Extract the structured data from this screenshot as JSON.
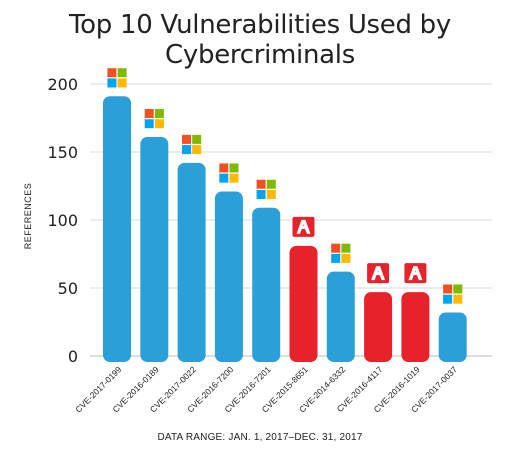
{
  "chart_data": {
    "type": "bar",
    "title": "Top 10 Vulnerabilities Used by Cybercriminals",
    "ylabel": "REFERENCES",
    "xlabel": "",
    "ylim": [
      0,
      200
    ],
    "yticks": [
      0,
      50,
      100,
      150,
      200
    ],
    "grid": true,
    "categories": [
      "CVE-2017-0199",
      "CVE-2016-0189",
      "CVE-2017-0022",
      "CVE-2016-7200",
      "CVE-2016-7201",
      "CVE-2015-8651",
      "CVE-2014-6332",
      "CVE-2016-4117",
      "CVE-2016-1019",
      "CVE-2017-0037"
    ],
    "values": [
      191,
      161,
      142,
      121,
      109,
      81,
      62,
      47,
      47,
      32
    ],
    "vendor_icons": [
      "windows-icon",
      "windows-icon",
      "windows-icon",
      "windows-icon",
      "windows-icon",
      "adobe-icon",
      "windows-icon",
      "adobe-icon",
      "adobe-icon",
      "windows-icon"
    ],
    "bar_colors": {
      "windows-icon": "#2a9fd8",
      "adobe-icon": "#e8222a"
    },
    "footnote": "DATA RANGE: JAN. 1, 2017–DEC. 31, 2017"
  }
}
